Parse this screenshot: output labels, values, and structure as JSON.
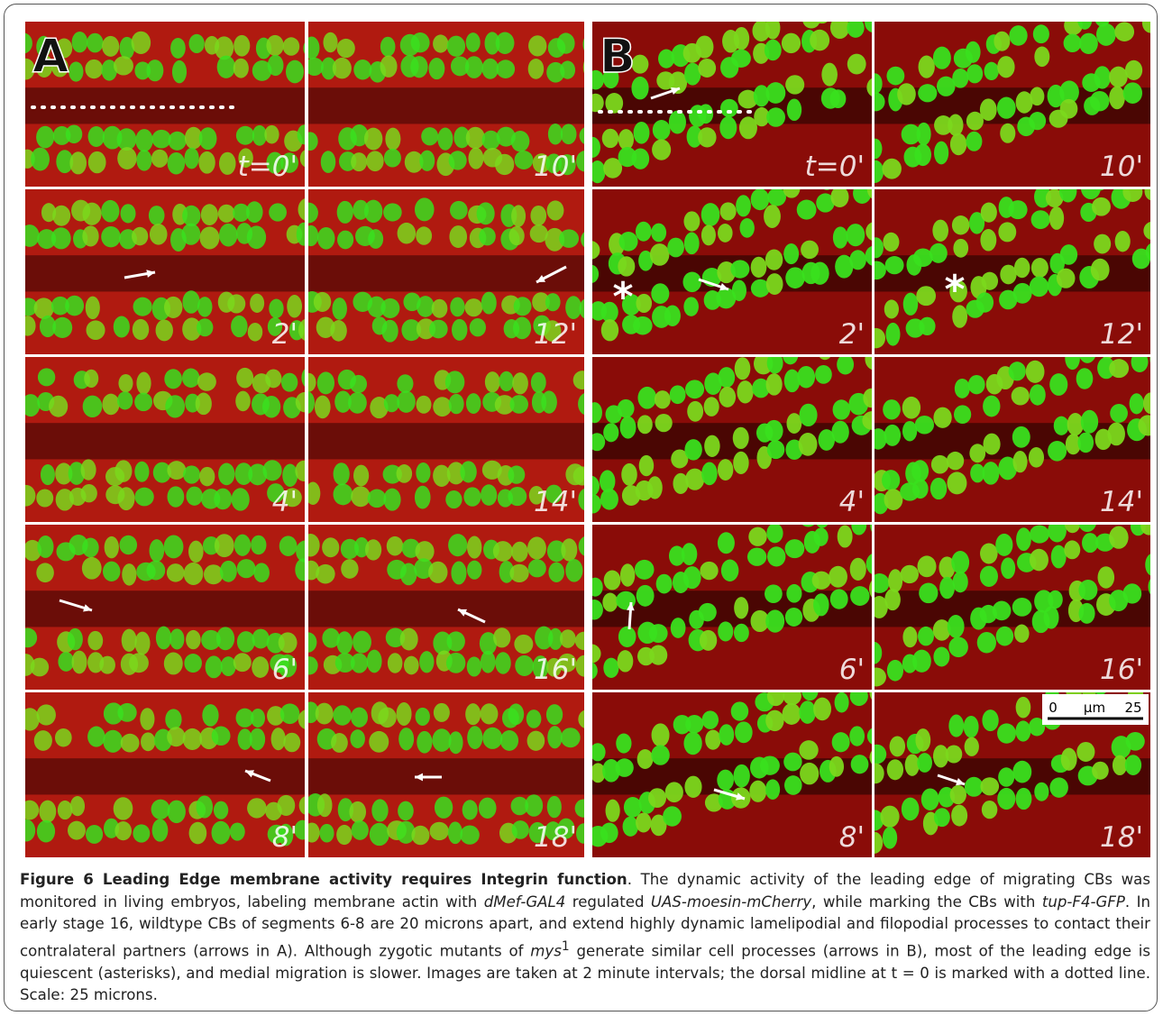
{
  "panels": [
    {
      "letter": "A",
      "columns": [
        [
          "t=0'",
          "2'",
          "4'",
          "6'",
          "8'"
        ],
        [
          "10'",
          "12'",
          "14'",
          "16'",
          "18'"
        ]
      ]
    },
    {
      "letter": "B",
      "columns": [
        [
          "t=0'",
          "2'",
          "4'",
          "6'",
          "8'"
        ],
        [
          "10'",
          "12'",
          "14'",
          "16'",
          "18'"
        ]
      ]
    }
  ],
  "scale_bar": {
    "start": "0",
    "unit": "µm",
    "end": "25"
  },
  "caption": {
    "runs": [
      "Figure 6 Leading Edge membrane activity requires Integrin function",
      ". The dynamic activity of the leading edge of migrating CBs was monitored in living embryos, labeling membrane actin with ",
      "dMef-GAL4",
      " regulated ",
      "UAS-moesin-mCherry",
      ", while marking the CBs with ",
      "tup-F4-GFP",
      ". In early stage 16, wildtype CBs of segments 6-8 are 20 microns apart, and extend highly dynamic lamelipodial and filopodial processes to contact their contralateral partners (arrows in A). Although zygotic mutants of ",
      "mys",
      "1",
      " generate similar cell processes (arrows in B), most of the leading edge is quiescent (asterisks), and medial migration is slower. Images are taken at 2 minute intervals; the dorsal midline at t = 0 is marked with a dotted line. Scale: 25 microns."
    ]
  }
}
